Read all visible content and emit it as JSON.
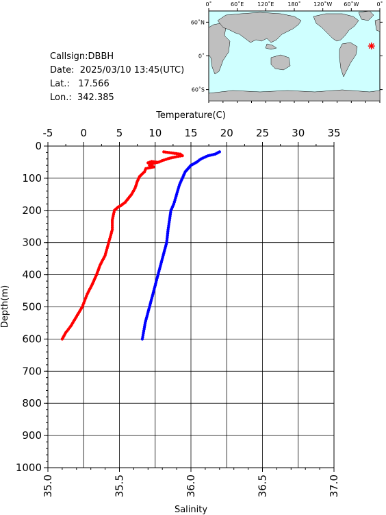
{
  "station": {
    "callsign_label": "Callsign:",
    "callsign": "DBBH",
    "date_label": "Date:",
    "date": "2025/03/10 13:45(UTC)",
    "lat_label": "Lat.:",
    "lat": "17.566",
    "lon_label": "Lon.:",
    "lon": "342.385"
  },
  "map": {
    "top_ticks": [
      "0˚",
      "60˚E",
      "120˚E",
      "180˚",
      "120˚W",
      "60˚W",
      "0˚"
    ],
    "lat_ticks": [
      "60˚N",
      "0˚",
      "60˚S"
    ],
    "ocean_color": "#cfffff",
    "land_color": "#bfbfbf",
    "marker_color": "#ff0000",
    "marker_lon": 342.385,
    "marker_lat": 17.566
  },
  "chart_data": {
    "type": "line",
    "top_axis": {
      "label": "Temperature(C)",
      "range": [
        -5,
        35
      ],
      "ticks": [
        "-5",
        "0",
        "5",
        "10",
        "15",
        "20",
        "25",
        "30",
        "35"
      ]
    },
    "bottom_axis": {
      "label": "Salinity",
      "range": [
        35.0,
        37.0
      ],
      "ticks": [
        "35.0",
        "35.5",
        "36.0",
        "36.5",
        "37.0"
      ]
    },
    "y_axis": {
      "label": "Depth(m)",
      "range": [
        0,
        1000
      ],
      "reversed": true,
      "ticks": [
        "0",
        "100",
        "200",
        "300",
        "400",
        "500",
        "600",
        "700",
        "800",
        "900",
        "1000"
      ]
    },
    "grid": true,
    "series": [
      {
        "axis": "temperature",
        "color": "#ff0000",
        "depth": [
          18,
          22,
          25,
          30,
          33,
          38,
          45,
          50,
          55,
          52,
          48,
          50,
          55,
          60,
          65,
          70,
          80,
          95,
          110,
          130,
          150,
          175,
          185,
          190,
          200,
          230,
          260,
          300,
          340,
          370,
          400,
          430,
          460,
          500,
          530,
          560,
          580,
          600
        ],
        "values": [
          11.2,
          12.5,
          13.5,
          13.8,
          13.0,
          12.0,
          11.0,
          10.5,
          9.5,
          9.0,
          9.5,
          10.2,
          9.6,
          9.2,
          9.8,
          8.7,
          8.5,
          7.8,
          7.5,
          7.2,
          6.7,
          5.8,
          5.2,
          4.8,
          4.3,
          4.0,
          4.0,
          3.5,
          3.0,
          2.3,
          1.8,
          1.2,
          0.5,
          -0.2,
          -1.0,
          -1.8,
          -2.5,
          -3.0
        ]
      },
      {
        "axis": "salinity",
        "color": "#0000ff",
        "depth": [
          18,
          25,
          30,
          40,
          50,
          60,
          70,
          80,
          100,
          120,
          150,
          180,
          200,
          230,
          260,
          300,
          350,
          400,
          450,
          500,
          550,
          600
        ],
        "values": [
          36.2,
          36.17,
          36.12,
          36.07,
          36.04,
          36.0,
          35.98,
          35.96,
          35.94,
          35.92,
          35.9,
          35.88,
          35.86,
          35.85,
          35.84,
          35.83,
          35.8,
          35.77,
          35.74,
          35.71,
          35.68,
          35.66
        ]
      }
    ]
  }
}
